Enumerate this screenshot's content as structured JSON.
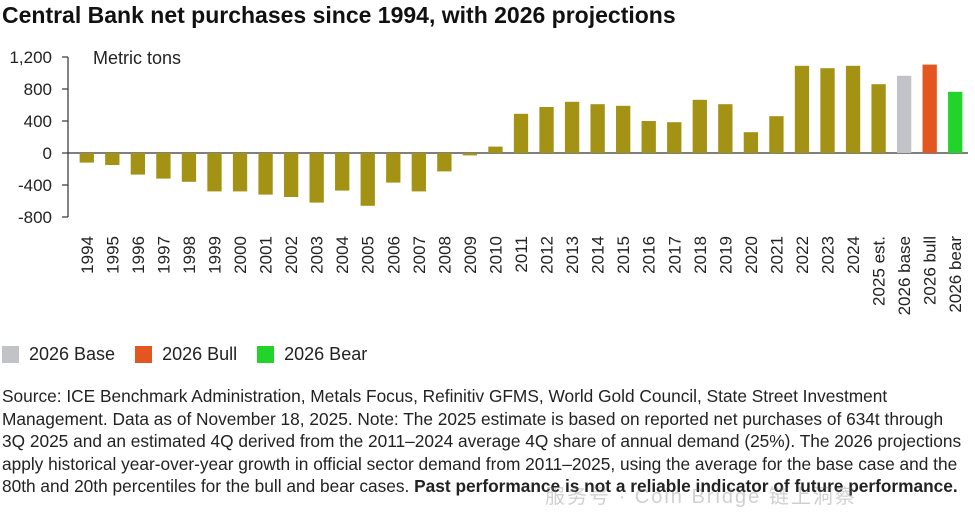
{
  "title": "Central Bank net purchases since 1994, with 2026 projections",
  "chart_data": {
    "type": "bar",
    "title": "Central Bank net purchases since 1994, with 2026 projections",
    "unit_label": "Metric tons",
    "categories": [
      "1994",
      "1995",
      "1996",
      "1997",
      "1998",
      "1999",
      "2000",
      "2001",
      "2002",
      "2003",
      "2004",
      "2005",
      "2006",
      "2007",
      "2008",
      "2009",
      "2010",
      "2011",
      "2012",
      "2013",
      "2014",
      "2015",
      "2016",
      "2017",
      "2018",
      "2019",
      "2020",
      "2021",
      "2022",
      "2023",
      "2024",
      "2025 est.",
      "2026 base",
      "2026 bull",
      "2026 bear"
    ],
    "values": [
      -120,
      -150,
      -270,
      -320,
      -360,
      -480,
      -480,
      -520,
      -550,
      -620,
      -470,
      -660,
      -370,
      -480,
      -230,
      -30,
      80,
      490,
      575,
      640,
      610,
      590,
      400,
      385,
      665,
      610,
      260,
      460,
      1090,
      1060,
      1090,
      860,
      965,
      1105,
      765
    ],
    "colors": [
      "#a39214",
      "#a39214",
      "#a39214",
      "#a39214",
      "#a39214",
      "#a39214",
      "#a39214",
      "#a39214",
      "#a39214",
      "#a39214",
      "#a39214",
      "#a39214",
      "#a39214",
      "#a39214",
      "#a39214",
      "#a39214",
      "#a39214",
      "#a39214",
      "#a39214",
      "#a39214",
      "#a39214",
      "#a39214",
      "#a39214",
      "#a39214",
      "#a39214",
      "#a39214",
      "#a39214",
      "#a39214",
      "#a39214",
      "#a39214",
      "#a39214",
      "#a39214",
      "#c2c3c8",
      "#e4561f",
      "#22d32a"
    ],
    "yticks": [
      -800,
      -400,
      0,
      400,
      800,
      1200
    ],
    "ytick_labels": [
      "-800",
      "-400",
      "0",
      "400",
      "800",
      "1,200"
    ],
    "ylim": [
      -800,
      1200
    ],
    "grid": false,
    "legend": [
      {
        "label": "2026 Base",
        "color": "#c2c3c8"
      },
      {
        "label": "2026 Bull",
        "color": "#e4561f"
      },
      {
        "label": "2026 Bear",
        "color": "#22d32a"
      }
    ],
    "legend_position": "bottom-left"
  },
  "source_text": "Source: ICE Benchmark Administration, Metals Focus, Refinitiv GFMS, World Gold Council, State Street Investment Management. Data as of November 18, 2025. Note: The 2025 estimate is based on reported net purchases of 634t through 3Q 2025 and an estimated 4Q derived from the 2011–2024 average 4Q share of annual demand (25%). The 2026 projections apply historical year-over-year growth in official sector demand from 2011–2025, using the average for the base case and the 80th and 20th percentiles for the bull and bear cases.",
  "disclaimer": "Past performance is not a reliable indicator of future performance.",
  "watermark": "服务号 · Coin Bridge 链上洞察"
}
